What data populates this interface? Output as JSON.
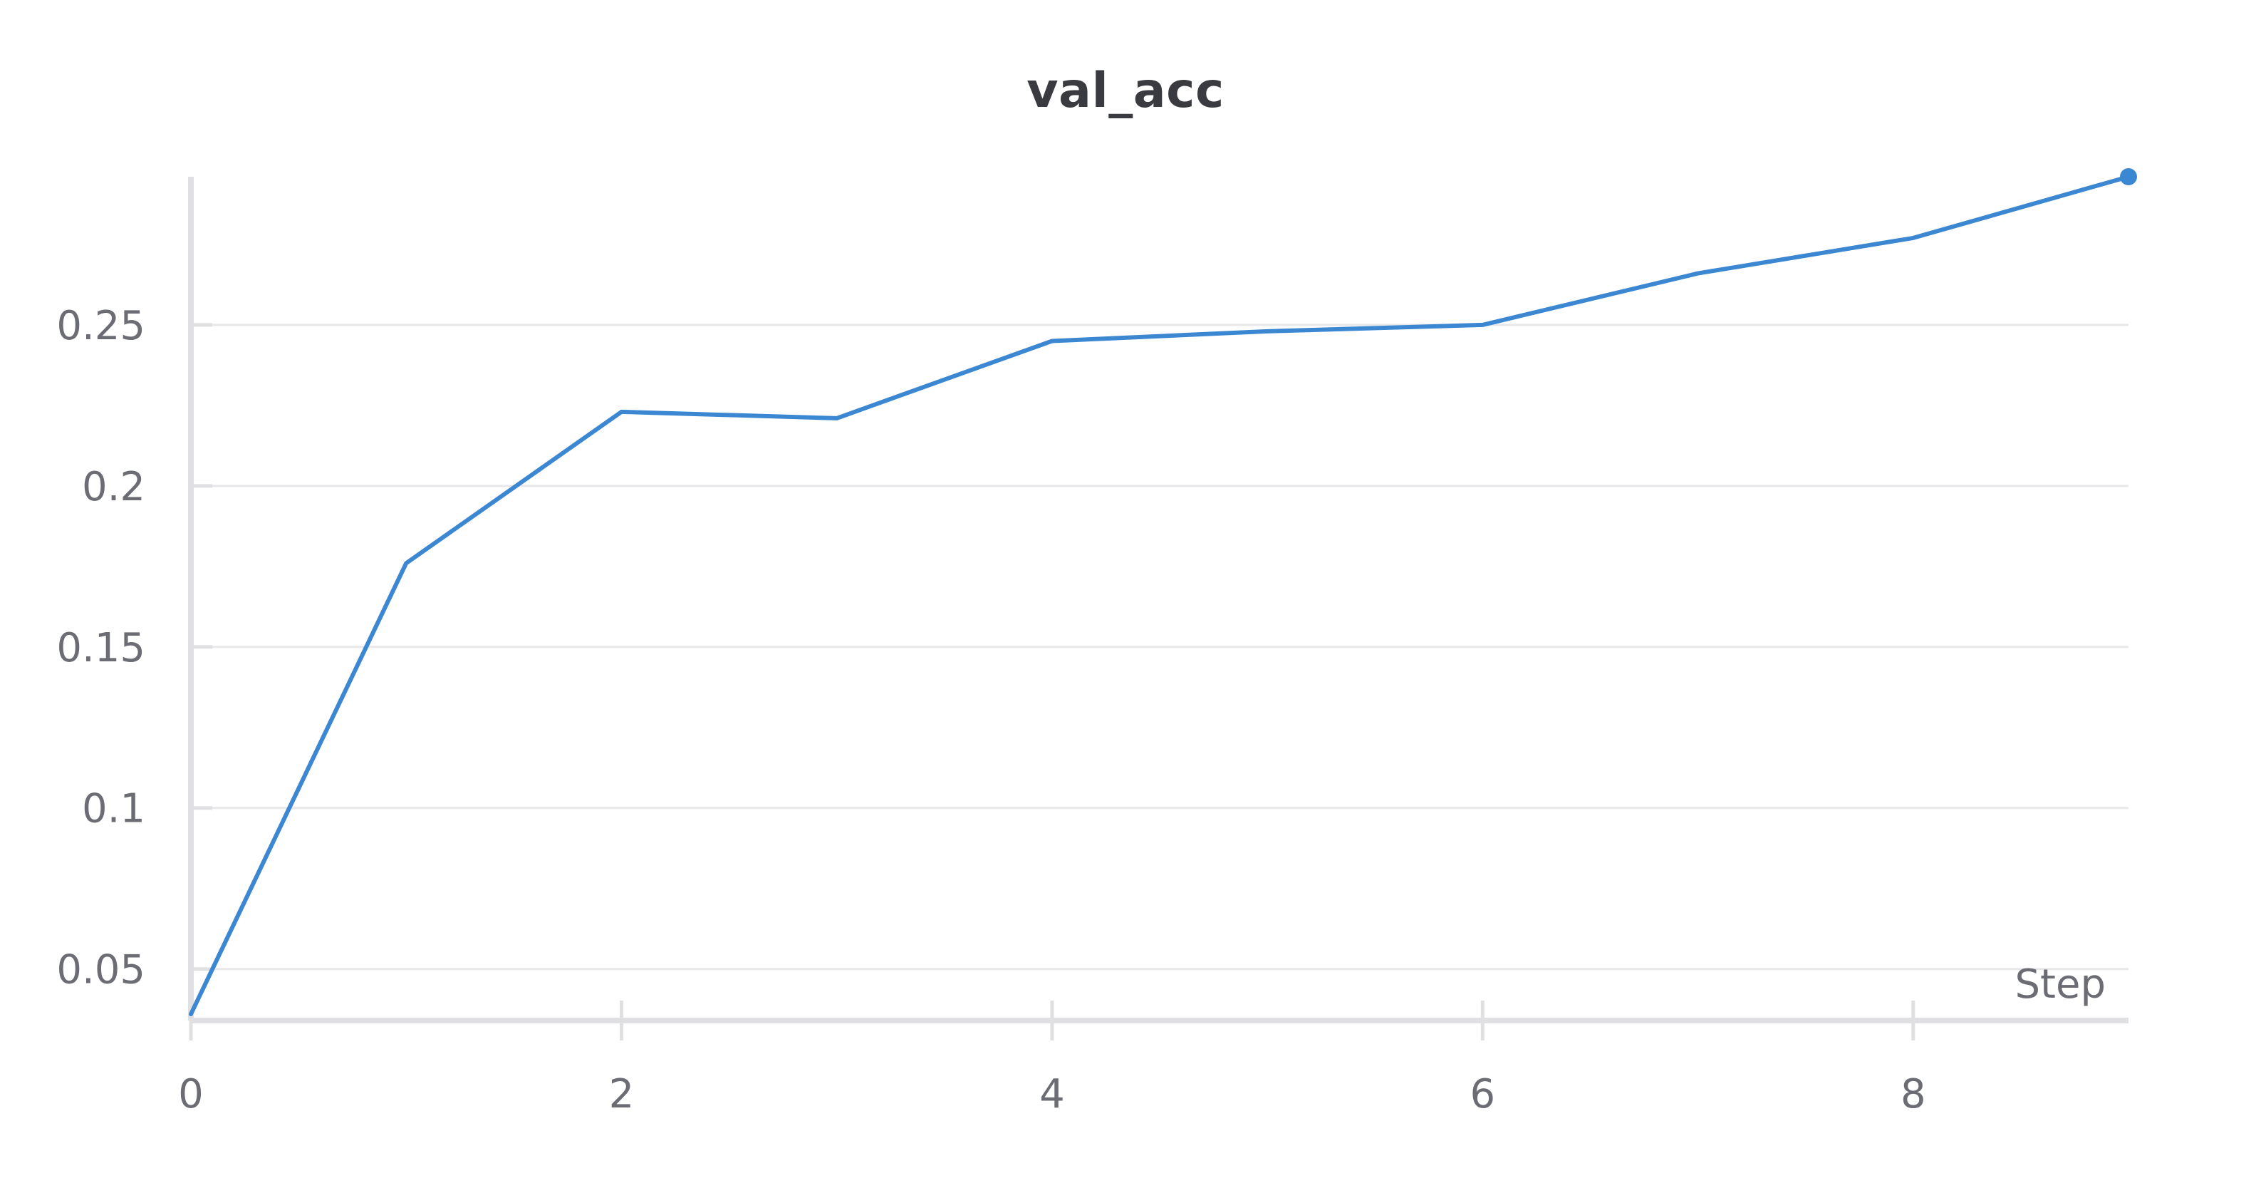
{
  "chart_data": {
    "type": "line",
    "title": "val_acc",
    "xlabel": "Step",
    "ylabel": "",
    "x": [
      0,
      1,
      2,
      3,
      4,
      5,
      6,
      7,
      8,
      9
    ],
    "series": [
      {
        "values": [
          0.036,
          0.176,
          0.223,
          0.221,
          0.245,
          0.248,
          0.25,
          0.266,
          0.277,
          0.296
        ]
      }
    ],
    "xlim": [
      0,
      9
    ],
    "ylim": [
      0.034,
      0.296
    ],
    "xticks": [
      0,
      2,
      4,
      6,
      8
    ],
    "xtick_labels": [
      "0",
      "2",
      "4",
      "6",
      "8"
    ],
    "yticks": [
      0.05,
      0.1,
      0.15,
      0.2,
      0.25
    ],
    "ytick_labels": [
      "0.05",
      "0.1",
      "0.15",
      "0.2",
      "0.25"
    ],
    "grid": "horizontal",
    "line_color": "#3b87d1",
    "grid_color": "#e8e8ea",
    "axis_color": "#e0e0e2",
    "last_point_marker": true
  }
}
